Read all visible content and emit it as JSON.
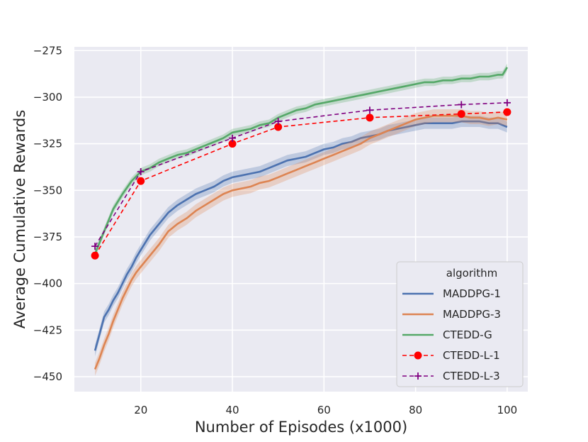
{
  "chart_data": {
    "type": "line",
    "title": "",
    "xlabel": "Number of Episodes (x1000)",
    "ylabel": "Average Cumulative Rewards",
    "xlim": [
      5.5,
      104.5
    ],
    "ylim": [
      -458,
      -273
    ],
    "xticks": [
      20,
      40,
      60,
      80,
      100
    ],
    "xtick_labels": [
      "20",
      "40",
      "60",
      "80",
      "100"
    ],
    "yticks": [
      -450,
      -425,
      -400,
      -375,
      -350,
      -325,
      -300,
      -275
    ],
    "ytick_labels": [
      "−450",
      "−425",
      "−400",
      "−375",
      "−350",
      "−325",
      "−300",
      "−275"
    ],
    "grid": true,
    "background": "#eaeaf2",
    "legend": {
      "title": "algorithm",
      "position": "lower-right"
    },
    "series": [
      {
        "name": "MADDPG-1",
        "color": "#4c72b0",
        "style": "solid-band",
        "band": 3,
        "x": [
          10,
          11,
          12,
          13,
          14,
          15,
          16,
          17,
          18,
          19,
          20,
          22,
          24,
          26,
          28,
          30,
          32,
          34,
          36,
          38,
          40,
          42,
          44,
          46,
          48,
          50,
          52,
          54,
          56,
          58,
          60,
          62,
          64,
          66,
          68,
          70,
          72,
          74,
          76,
          78,
          80,
          82,
          84,
          86,
          88,
          90,
          92,
          94,
          96,
          98,
          100
        ],
        "y": [
          -436,
          -427,
          -418,
          -414,
          -409,
          -405,
          -400,
          -395,
          -391,
          -386,
          -382,
          -374,
          -368,
          -362,
          -358,
          -355,
          -352,
          -350,
          -348,
          -345,
          -343,
          -342,
          -341,
          -340,
          -338,
          -336,
          -334,
          -333,
          -332,
          -330,
          -328,
          -327,
          -325,
          -324,
          -322,
          -321,
          -320,
          -318,
          -317,
          -316,
          -315,
          -314,
          -314,
          -314,
          -314,
          -313,
          -313,
          -313,
          -314,
          -314,
          -316
        ]
      },
      {
        "name": "MADDPG-3",
        "color": "#dd8452",
        "style": "solid-band",
        "band": 3.5,
        "x": [
          10,
          11,
          12,
          13,
          14,
          15,
          16,
          17,
          18,
          19,
          20,
          22,
          24,
          26,
          28,
          30,
          32,
          34,
          36,
          38,
          40,
          42,
          44,
          46,
          48,
          50,
          52,
          54,
          56,
          58,
          60,
          62,
          64,
          66,
          68,
          70,
          72,
          74,
          76,
          78,
          80,
          82,
          84,
          86,
          88,
          90,
          92,
          94,
          96,
          98,
          100
        ],
        "y": [
          -446,
          -440,
          -433,
          -427,
          -420,
          -414,
          -408,
          -403,
          -398,
          -394,
          -391,
          -385,
          -379,
          -372,
          -368,
          -365,
          -361,
          -358,
          -355,
          -352,
          -350,
          -349,
          -348,
          -346,
          -345,
          -343,
          -341,
          -339,
          -337,
          -335,
          -333,
          -331,
          -329,
          -327,
          -325,
          -322,
          -320,
          -318,
          -316,
          -314,
          -312,
          -311,
          -310,
          -310,
          -310,
          -310,
          -311,
          -311,
          -312,
          -311,
          -312
        ]
      },
      {
        "name": "CTEDD-G",
        "color": "#55a868",
        "style": "solid-band",
        "band": 2,
        "x": [
          10,
          12,
          14,
          16,
          18,
          20,
          22,
          24,
          26,
          28,
          30,
          32,
          34,
          36,
          38,
          40,
          42,
          44,
          46,
          48,
          50,
          52,
          54,
          56,
          58,
          60,
          62,
          64,
          66,
          68,
          70,
          72,
          74,
          76,
          78,
          80,
          82,
          84,
          86,
          88,
          90,
          92,
          94,
          96,
          98,
          99,
          100
        ],
        "y": [
          -384,
          -372,
          -360,
          -352,
          -345,
          -340,
          -338,
          -335,
          -333,
          -331,
          -330,
          -328,
          -326,
          -324,
          -322,
          -319,
          -318,
          -317,
          -315,
          -314,
          -311,
          -309,
          -307,
          -306,
          -304,
          -303,
          -302,
          -301,
          -300,
          -299,
          -298,
          -297,
          -296,
          -295,
          -294,
          -293,
          -292,
          -292,
          -291,
          -291,
          -290,
          -290,
          -289,
          -289,
          -288,
          -288,
          -284
        ]
      },
      {
        "name": "CTEDD-L-1",
        "color": "#ff0000",
        "style": "dashed-circle",
        "x": [
          10,
          20,
          40,
          50,
          70,
          90,
          100
        ],
        "y": [
          -385,
          -345,
          -325,
          -316,
          -311,
          -309,
          -308
        ]
      },
      {
        "name": "CTEDD-L-3",
        "color": "#800080",
        "style": "dashed-plus",
        "x": [
          10,
          20,
          40,
          50,
          70,
          90,
          100
        ],
        "y": [
          -380,
          -340,
          -322,
          -313,
          -307,
          -304,
          -303
        ]
      }
    ]
  }
}
